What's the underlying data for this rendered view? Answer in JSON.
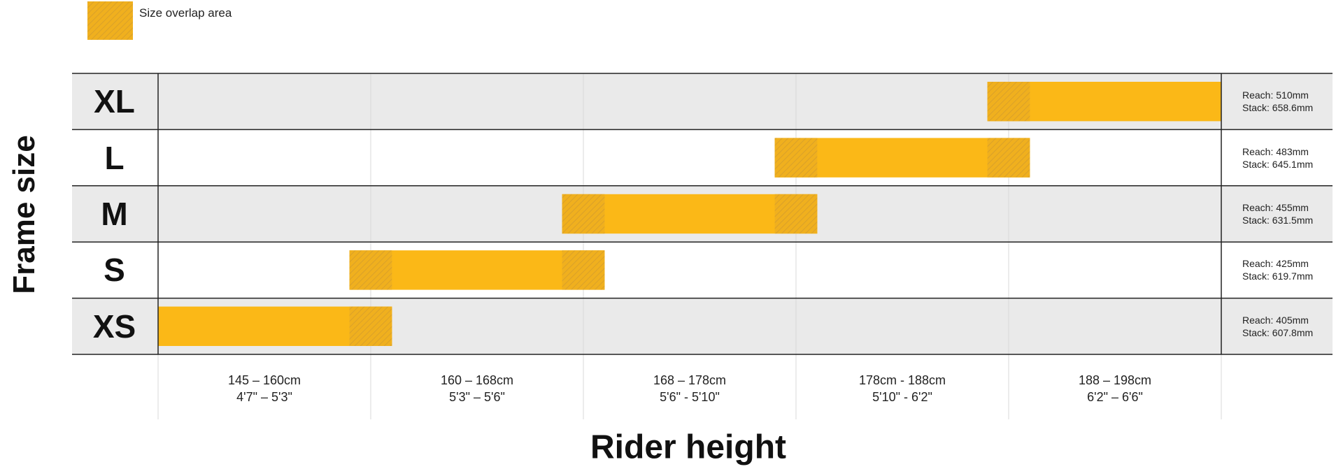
{
  "legend": {
    "overlap_label": "Size overlap area",
    "overlap_color": "#FBB817"
  },
  "chart_data": {
    "type": "range-bar",
    "ylabel": "Frame size",
    "xlabel": "Rider height",
    "bar_color": "#FBB817",
    "x_columns": [
      {
        "cm": "145 – 160cm",
        "ft": "4'7\" – 5'3\""
      },
      {
        "cm": "160 – 168cm",
        "ft": "5'3\" – 5'6\""
      },
      {
        "cm": "168 – 178cm",
        "ft": "5'6\" - 5'10\""
      },
      {
        "cm": "178cm - 188cm",
        "ft": "5'10\" - 6'2\""
      },
      {
        "cm": "188 – 198cm",
        "ft": "6'2\" – 6'6\""
      }
    ],
    "sizes": [
      {
        "label": "XL",
        "start_col": 3.9,
        "end_col": 5.0,
        "overlap_low": [
          3.9,
          4.1
        ],
        "overlap_high": null,
        "reach": "Reach: 510mm",
        "stack": "Stack: 658.6mm"
      },
      {
        "label": "L",
        "start_col": 2.9,
        "end_col": 4.1,
        "overlap_low": [
          2.9,
          3.1
        ],
        "overlap_high": [
          3.9,
          4.1
        ],
        "reach": "Reach: 483mm",
        "stack": "Stack: 645.1mm"
      },
      {
        "label": "M",
        "start_col": 1.9,
        "end_col": 3.1,
        "overlap_low": [
          1.9,
          2.1
        ],
        "overlap_high": [
          2.9,
          3.1
        ],
        "reach": "Reach: 455mm",
        "stack": "Stack: 631.5mm"
      },
      {
        "label": "S",
        "start_col": 0.9,
        "end_col": 2.1,
        "overlap_low": [
          0.9,
          1.1
        ],
        "overlap_high": [
          1.9,
          2.1
        ],
        "reach": "Reach: 425mm",
        "stack": "Stack: 619.7mm"
      },
      {
        "label": "XS",
        "start_col": 0.0,
        "end_col": 1.1,
        "overlap_low": null,
        "overlap_high": [
          0.9,
          1.1
        ],
        "reach": "Reach: 405mm",
        "stack": "Stack: 607.8mm"
      }
    ]
  }
}
